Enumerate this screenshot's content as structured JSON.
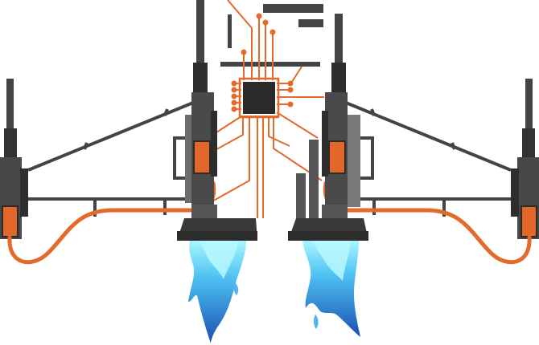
{
  "illustration": {
    "icons": [
      "circuit-chip-icon",
      "jet-engine-icon",
      "thruster-nozzle-icon",
      "blue-flame-icon",
      "orange-cable-icon",
      "bracket-arm-icon"
    ],
    "colors": {
      "dark_metal": "#3a3a3a",
      "mid_metal": "#555555",
      "light_metal": "#7a7a7a",
      "chip": "#2b2b2b",
      "circuit_orange": "#e46a2c",
      "panel_orange": "#e4672a",
      "flame_light": "#8ff0ff",
      "flame_mid": "#45b6f0",
      "flame_dark": "#1c55b8",
      "background": "#ffffff"
    }
  }
}
